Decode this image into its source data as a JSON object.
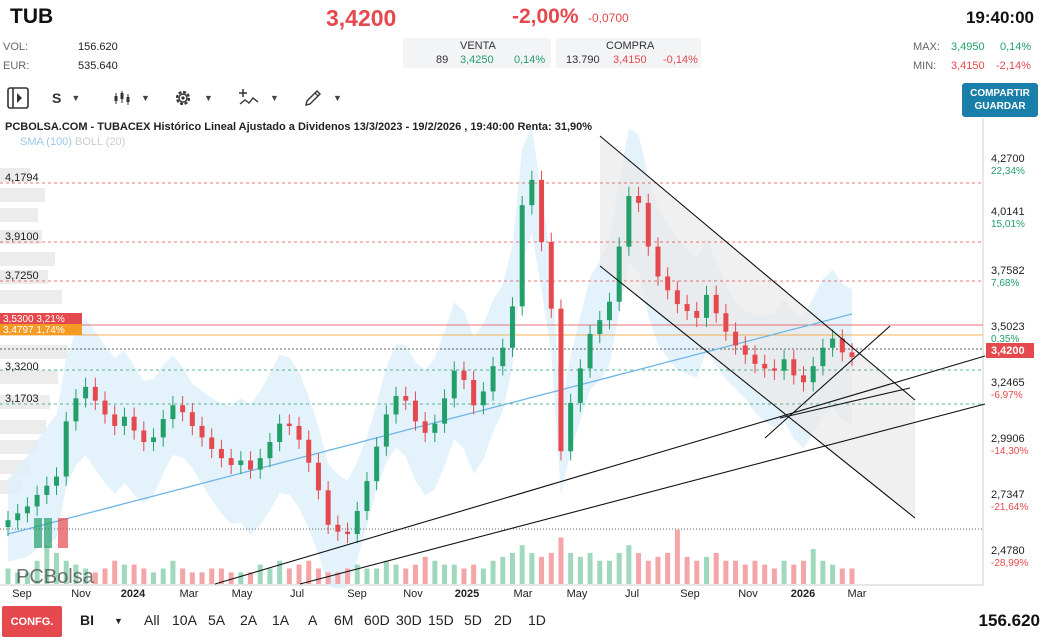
{
  "header": {
    "ticker": "TUB",
    "price": "3,4200",
    "change_pct": "-2,00%",
    "change_abs": "-0,0700",
    "time": "19:40:00"
  },
  "stats": {
    "vol_label": "VOL:",
    "vol_value": "156.620",
    "eur_label": "EUR:",
    "eur_value": "535.640"
  },
  "orderbook": {
    "venta_label": "VENTA",
    "compra_label": "COMPRA",
    "venta_qty": "89",
    "venta_price": "3,4250",
    "venta_pct": "0,14%",
    "compra_qty": "13.790",
    "compra_price": "3,4150",
    "compra_pct": "-0,14%"
  },
  "maxmin": {
    "max_label": "MAX:",
    "max_value": "3,4950",
    "max_pct": "0,14%",
    "min_label": "MIN:",
    "min_value": "3,4150",
    "min_pct": "-2,14%"
  },
  "toolbar": {
    "period_label": "S",
    "share_line1": "COMPARTIR",
    "share_line2": "GUARDAR"
  },
  "chart_title": "PCBOLSA.COM - TUBACEX Histórico Lineal Ajustado a Dividenos 13/3/2023 - 19/2/2026 , 19:40:00 Renta: 31,90%",
  "indicators": {
    "sma": "SMA (100)",
    "boll": "BOLL (20)"
  },
  "watermark": "PCBolsa",
  "right_axis": [
    {
      "price": "4,2700",
      "pct": "22,34%",
      "color": "#23a06a"
    },
    {
      "price": "4,0141",
      "pct": "15,01%",
      "color": "#23a06a"
    },
    {
      "price": "3,7582",
      "pct": "7,68%",
      "color": "#23a06a"
    },
    {
      "price": "3,5023",
      "pct": "0,35%",
      "color": "#23a06a"
    },
    {
      "price": "3,2465",
      "pct": "-6,97%",
      "color": "#e5484d"
    },
    {
      "price": "2,9906",
      "pct": "-14,30%",
      "color": "#e5484d"
    },
    {
      "price": "2,7347",
      "pct": "-21,64%",
      "color": "#e5484d"
    },
    {
      "price": "2,4780",
      "pct": "-28,99%",
      "color": "#e5484d"
    }
  ],
  "current_price_tag": "3,4200",
  "left_levels": [
    {
      "label": "4,1794"
    },
    {
      "label": "3,9100"
    },
    {
      "label": "3,7250"
    },
    {
      "label": "3,3200"
    },
    {
      "label": "3,1703"
    }
  ],
  "left_tags": [
    {
      "label": "3,5300  3,21%",
      "color": "#e5484d"
    },
    {
      "label": "3,4797  1,74%",
      "color": "#f59a23"
    }
  ],
  "x_axis": [
    "Sep",
    "Nov",
    "2024",
    "Mar",
    "May",
    "Jul",
    "Sep",
    "Nov",
    "2025",
    "Mar",
    "May",
    "Jul",
    "Sep",
    "Nov",
    "2026",
    "Mar"
  ],
  "bottom": {
    "conf_label": "CONFG.",
    "type_label": "BI",
    "ranges": [
      "All",
      "10A",
      "5A",
      "2A",
      "1A",
      "A",
      "6M",
      "60D",
      "30D",
      "15D",
      "5D",
      "2D",
      "1D"
    ],
    "volume": "156.620"
  },
  "chart_data": {
    "type": "candlestick",
    "title": "PCBOLSA.COM - TUBACEX Histórico Lineal Ajustado a Dividenos 13/3/2023 - 19/2/2026 , 19:40:00 Renta: 31,90%",
    "ylim": [
      2.45,
      4.32
    ],
    "x_ticks": [
      "Sep",
      "Nov",
      "2024",
      "Mar",
      "May",
      "Jul",
      "Sep",
      "Nov",
      "2025",
      "Mar",
      "May",
      "Jul",
      "Sep",
      "Nov",
      "2026",
      "Mar"
    ],
    "close_series": [
      2.71,
      2.74,
      2.77,
      2.82,
      2.86,
      2.9,
      3.14,
      3.24,
      3.29,
      3.23,
      3.17,
      3.12,
      3.16,
      3.1,
      3.05,
      3.07,
      3.15,
      3.21,
      3.18,
      3.12,
      3.07,
      3.02,
      2.98,
      2.95,
      2.97,
      2.93,
      2.98,
      3.05,
      3.13,
      3.12,
      3.06,
      2.96,
      2.84,
      2.69,
      2.66,
      2.65,
      2.75,
      2.88,
      3.03,
      3.17,
      3.25,
      3.23,
      3.14,
      3.09,
      3.13,
      3.24,
      3.36,
      3.32,
      3.21,
      3.27,
      3.38,
      3.46,
      3.64,
      4.08,
      4.19,
      3.92,
      3.63,
      3.01,
      3.22,
      3.37,
      3.52,
      3.58,
      3.66,
      3.9,
      4.12,
      4.09,
      3.9,
      3.77,
      3.71,
      3.65,
      3.62,
      3.59,
      3.69,
      3.61,
      3.53,
      3.47,
      3.43,
      3.39,
      3.37,
      3.36,
      3.41,
      3.34,
      3.31,
      3.38,
      3.46,
      3.5,
      3.44,
      3.42
    ],
    "volume_series": [
      2,
      1.5,
      1.5,
      3,
      5,
      4,
      3,
      2.5,
      2,
      1.5,
      2,
      3,
      2.5,
      2.5,
      2,
      1.5,
      2,
      3,
      2,
      1.5,
      1.5,
      2,
      2,
      1.5,
      1.5,
      1.5,
      2.5,
      2,
      3,
      2,
      2.5,
      3,
      2,
      1.5,
      1.5,
      2,
      2.5,
      2,
      2,
      3,
      2.5,
      2,
      2.5,
      3.5,
      3,
      2.5,
      2.5,
      2,
      2.5,
      2,
      3,
      3.5,
      4,
      5,
      4,
      3.5,
      4,
      6,
      4,
      3.5,
      4,
      3,
      3,
      4,
      5,
      4,
      3,
      3.5,
      4,
      7,
      3.5,
      3,
      3.5,
      4,
      3,
      3,
      2.5,
      3,
      2.5,
      2,
      3,
      2.5,
      3,
      4.5,
      3,
      2.5,
      2,
      2
    ],
    "sma_label": "SMA (100)",
    "boll_label": "BOLL (20)",
    "colors": {
      "up": "#23a06a",
      "down": "#e5484d",
      "sma": "#6fb6e6",
      "boll_fill": "#dff0fc"
    }
  }
}
